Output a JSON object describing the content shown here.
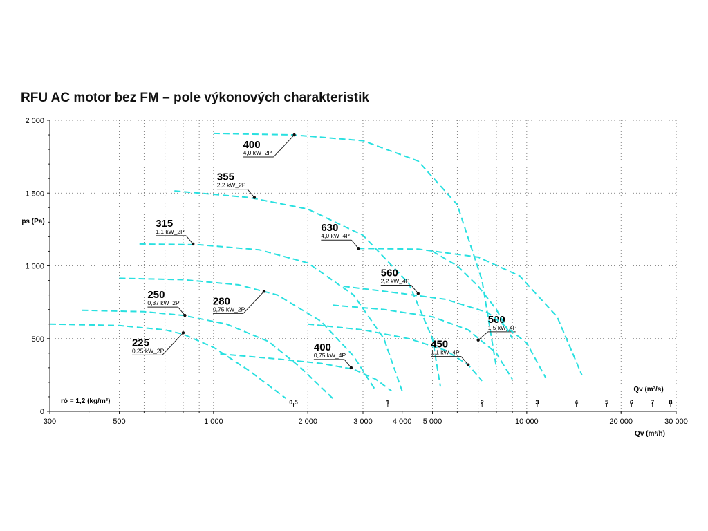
{
  "title": "RFU AC motor bez FM – pole výkonových charakteristik",
  "chart_data": {
    "type": "line",
    "title": "RFU AC motor bez FM – pole výkonových charakteristik",
    "ylabel": "ps (Pa)",
    "xlabel": "Qv (m³/h)",
    "xlabel2": "Qv (m³/s)",
    "density_note": "ró = 1,2 (kg/m³)",
    "x_scale": "log",
    "xlim": [
      300,
      30000
    ],
    "ylim": [
      0,
      2000
    ],
    "grid": true,
    "x_ticks": [
      {
        "value": 300,
        "label": "300"
      },
      {
        "value": 500,
        "label": "500"
      },
      {
        "value": 1000,
        "label": "1 000"
      },
      {
        "value": 2000,
        "label": "2 000"
      },
      {
        "value": 3000,
        "label": "3 000"
      },
      {
        "value": 4000,
        "label": "4 000"
      },
      {
        "value": 5000,
        "label": "5 000"
      },
      {
        "value": 10000,
        "label": "10 000"
      },
      {
        "value": 20000,
        "label": "20 000"
      },
      {
        "value": 30000,
        "label": "30 000"
      }
    ],
    "y_ticks": [
      {
        "value": 0,
        "label": "0"
      },
      {
        "value": 500,
        "label": "500"
      },
      {
        "value": 1000,
        "label": "1 000"
      },
      {
        "value": 1500,
        "label": "1 500"
      },
      {
        "value": 2000,
        "label": "2 000"
      }
    ],
    "secondary_ticks": [
      {
        "value": 0.5,
        "label": "0,5"
      },
      {
        "value": 1,
        "label": "1"
      },
      {
        "value": 2,
        "label": "2"
      },
      {
        "value": 3,
        "label": "3"
      },
      {
        "value": 4,
        "label": "4"
      },
      {
        "value": 5,
        "label": "5"
      },
      {
        "value": 6,
        "label": "6"
      },
      {
        "value": 7,
        "label": "7"
      },
      {
        "value": 8,
        "label": "8"
      }
    ],
    "series": [
      {
        "name": "225",
        "sub": "0,25 kW_2P",
        "color": "#29e0e0",
        "x": [
          300,
          500,
          700,
          800,
          1000,
          1300,
          1700
        ],
        "y": [
          600,
          590,
          560,
          530,
          440,
          280,
          90
        ],
        "marker": [
          800,
          540
        ],
        "label_pos": "below-left"
      },
      {
        "name": "250",
        "sub": "0,37 kW_2P",
        "color": "#29e0e0",
        "x": [
          380,
          600,
          800,
          1100,
          1500,
          1900,
          2400
        ],
        "y": [
          695,
          685,
          660,
          600,
          480,
          300,
          90
        ],
        "marker": [
          810,
          660
        ],
        "label_pos": "above-left"
      },
      {
        "name": "280",
        "sub": "0,75 kW_2P",
        "color": "#29e0e0",
        "x": [
          500,
          800,
          1200,
          1600,
          2200,
          2800,
          3300
        ],
        "y": [
          915,
          905,
          870,
          800,
          620,
          380,
          140
        ],
        "marker": [
          1450,
          825
        ],
        "label_pos": "below-left"
      },
      {
        "name": "315",
        "sub": "1,1 kW_2P",
        "color": "#29e0e0",
        "x": [
          580,
          900,
          1400,
          2000,
          2800,
          3500,
          4000
        ],
        "y": [
          1150,
          1145,
          1110,
          1020,
          800,
          500,
          140
        ],
        "marker": [
          860,
          1150
        ],
        "label_pos": "above-left"
      },
      {
        "name": "355",
        "sub": "2,2 kW_2P",
        "color": "#29e0e0",
        "x": [
          750,
          1300,
          2000,
          3000,
          4200,
          5000,
          5300
        ],
        "y": [
          1515,
          1470,
          1390,
          1210,
          880,
          500,
          170
        ],
        "marker": [
          1350,
          1470
        ],
        "label_pos": "above-left"
      },
      {
        "name": "400",
        "sub": "4,0 kW_2P",
        "color": "#29e0e0",
        "x": [
          1000,
          1800,
          3000,
          4500,
          6000,
          7200,
          8000
        ],
        "y": [
          1910,
          1900,
          1860,
          1720,
          1420,
          900,
          300
        ],
        "marker": [
          1810,
          1900
        ],
        "label_pos": "below-left"
      },
      {
        "name": "400",
        "sub": "0,75 kW_4P",
        "color": "#29e0e0",
        "x": [
          1050,
          1600,
          2200,
          2800,
          3300,
          3700
        ],
        "y": [
          395,
          360,
          330,
          290,
          220,
          140
        ],
        "marker": [
          2750,
          300
        ],
        "label_pos": "above-left"
      },
      {
        "name": "450",
        "sub": "1,1 kW_4P",
        "color": "#29e0e0",
        "x": [
          2000,
          3000,
          4200,
          5500,
          6500,
          7200
        ],
        "y": [
          600,
          560,
          500,
          420,
          320,
          210
        ],
        "marker": [
          6500,
          320
        ],
        "label_pos": "above-left"
      },
      {
        "name": "500",
        "sub": "1,5 kW_4P",
        "color": "#29e0e0",
        "x": [
          2400,
          3500,
          5000,
          6500,
          8000,
          9000
        ],
        "y": [
          730,
          700,
          650,
          560,
          400,
          220
        ],
        "marker": [
          7000,
          490
        ],
        "label_pos": "above-right"
      },
      {
        "name": "560",
        "sub": "2,2 kW_4P",
        "color": "#29e0e0",
        "x": [
          2600,
          4000,
          5500,
          7500,
          10000,
          11500
        ],
        "y": [
          860,
          810,
          770,
          680,
          470,
          230
        ],
        "marker": [
          4500,
          810
        ],
        "label_pos": "above-left"
      },
      {
        "name": "630",
        "sub": "4,0 kW_4P",
        "color": "#29e0e0",
        "x": [
          2900,
          4500,
          7000,
          9500,
          12500,
          15000
        ],
        "y": [
          1120,
          1115,
          1060,
          930,
          650,
          250
        ],
        "marker": [
          2900,
          1120
        ],
        "label_pos": "above-left"
      },
      {
        "name": "",
        "sub": "",
        "color": "#29e0e0",
        "x": [
          5000,
          6000,
          7000,
          8000,
          9000
        ],
        "y": [
          1100,
          1000,
          860,
          700,
          500
        ],
        "marker": null,
        "label_pos": ""
      }
    ]
  }
}
